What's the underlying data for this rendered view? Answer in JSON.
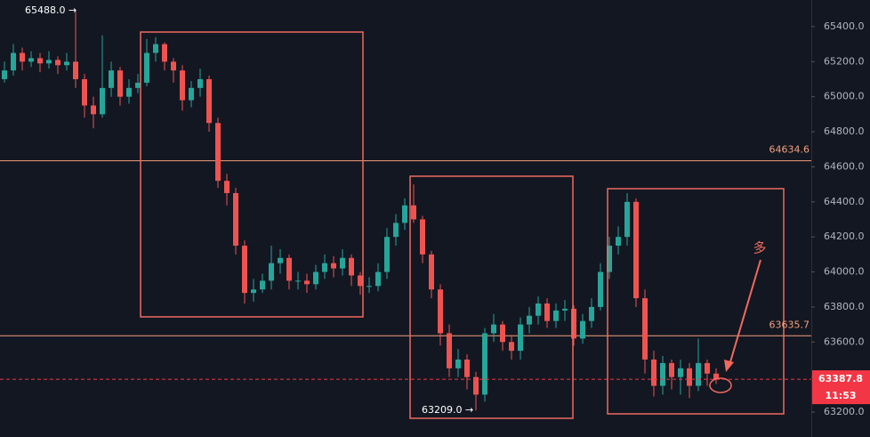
{
  "chart_data": {
    "type": "candlestick",
    "open": [
      65100,
      65150,
      65250,
      65200,
      65220,
      65190,
      65210,
      65180,
      65200,
      65100,
      64950,
      64900,
      65050,
      65150,
      65000,
      65050,
      65080,
      65250,
      65300,
      65200,
      65150,
      64980,
      65050,
      65100,
      64850,
      64520,
      64450,
      64150,
      63880,
      63900,
      63950,
      64050,
      64080,
      63950,
      63950,
      63930,
      64000,
      64050,
      64020,
      64080,
      63980,
      63920,
      63920,
      64000,
      64200,
      64280,
      64380,
      64300,
      64100,
      63900,
      63650,
      63450,
      63500,
      63400,
      63300,
      63650,
      63700,
      63600,
      63550,
      63700,
      63750,
      63820,
      63720,
      63780,
      63790,
      63620,
      63720,
      63800,
      64000,
      64150,
      64200,
      64400,
      63850,
      63500,
      63350,
      63480,
      63400,
      63450,
      63350,
      63480,
      63420
    ],
    "high": [
      65200,
      65300,
      65280,
      65260,
      65250,
      65260,
      65230,
      65250,
      65488,
      65130,
      65000,
      65350,
      65200,
      65170,
      65100,
      65130,
      65330,
      65340,
      65310,
      65220,
      65180,
      65090,
      65160,
      65120,
      64880,
      64560,
      64480,
      64180,
      63960,
      63990,
      64150,
      64130,
      64100,
      64000,
      63990,
      64040,
      64100,
      64090,
      64130,
      64100,
      64000,
      63970,
      64050,
      64250,
      64330,
      64420,
      64500,
      64320,
      64120,
      63930,
      63700,
      63560,
      63530,
      63430,
      63680,
      63760,
      63720,
      63640,
      63740,
      63800,
      63860,
      63850,
      63820,
      63840,
      63810,
      63760,
      63850,
      64050,
      64200,
      64260,
      64450,
      64420,
      63900,
      63550,
      63520,
      63500,
      63500,
      63480,
      63620,
      63500,
      63450
    ],
    "low": [
      65080,
      65120,
      65150,
      65170,
      65140,
      65160,
      65130,
      65150,
      65050,
      64880,
      64820,
      64880,
      65000,
      64950,
      64960,
      65020,
      65060,
      65200,
      65150,
      65080,
      64920,
      64940,
      65000,
      64800,
      64480,
      64380,
      64100,
      63820,
      63830,
      63880,
      63900,
      63990,
      63900,
      63900,
      63880,
      63900,
      63960,
      63970,
      63980,
      63920,
      63870,
      63880,
      63890,
      63960,
      64150,
      64240,
      64280,
      64050,
      63850,
      63580,
      63400,
      63400,
      63330,
      63209,
      63260,
      63600,
      63550,
      63500,
      63500,
      63650,
      63700,
      63680,
      63680,
      63720,
      63580,
      63590,
      63680,
      63780,
      63960,
      64100,
      64150,
      63800,
      63420,
      63290,
      63300,
      63330,
      63300,
      63280,
      63320,
      63350,
      63360
    ],
    "close": [
      65150,
      65250,
      65200,
      65220,
      65190,
      65210,
      65180,
      65200,
      65100,
      64950,
      64900,
      65050,
      65150,
      65000,
      65050,
      65080,
      65250,
      65300,
      65200,
      65150,
      64980,
      65050,
      65100,
      64850,
      64520,
      64450,
      64150,
      63880,
      63900,
      63950,
      64050,
      64080,
      63950,
      63950,
      63930,
      64000,
      64050,
      64020,
      64080,
      63980,
      63920,
      63920,
      64000,
      64200,
      64280,
      64380,
      64300,
      64100,
      63900,
      63650,
      63450,
      63500,
      63400,
      63300,
      63650,
      63700,
      63600,
      63550,
      63700,
      63750,
      63820,
      63720,
      63780,
      63790,
      63620,
      63720,
      63800,
      64000,
      64150,
      64200,
      64400,
      63850,
      63500,
      63350,
      63480,
      63400,
      63450,
      63350,
      63480,
      63420,
      63387.8
    ],
    "up_color": "#26a69a",
    "down_color": "#ef5350",
    "ylim": [
      63058,
      65552
    ],
    "yticks": [
      {
        "value": 63200,
        "label": "63200.0"
      },
      {
        "value": 63400,
        "label": "63400.0"
      },
      {
        "value": 63600,
        "label": "63600.0"
      },
      {
        "value": 63800,
        "label": "63800.0"
      },
      {
        "value": 64000,
        "label": "64000.0"
      },
      {
        "value": 64200,
        "label": "64200.0"
      },
      {
        "value": 64400,
        "label": "64400.0"
      },
      {
        "value": 64600,
        "label": "64600.0"
      },
      {
        "value": 64800,
        "label": "64800.0"
      },
      {
        "value": 65000,
        "label": "65000.0"
      },
      {
        "value": 65200,
        "label": "65200.0"
      },
      {
        "value": 65400,
        "label": "65400.0"
      }
    ],
    "levels": [
      {
        "value": 64634.6,
        "label": "64634.6",
        "color": "#f4a07c"
      },
      {
        "value": 63635.7,
        "label": "63635.7",
        "color": "#f4a07c"
      }
    ],
    "current": {
      "value": 63387.8,
      "label": "63387.8",
      "countdown": "11:53",
      "color": "#f23645"
    },
    "annotations": [
      "65488.0 →",
      "63209.0 →",
      "多"
    ]
  }
}
